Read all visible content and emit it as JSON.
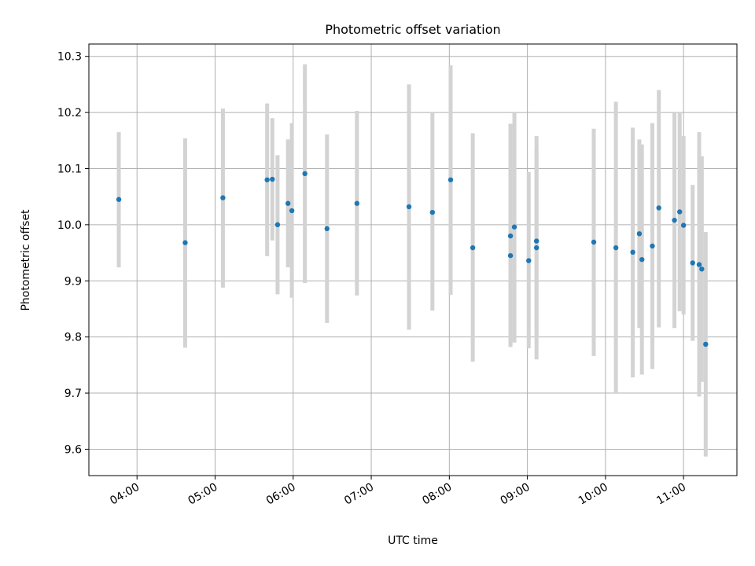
{
  "chart_data": {
    "type": "scatter",
    "title": "Photometric offset variation",
    "xlabel": "UTC time",
    "ylabel": "Photometric offset",
    "x_unit": "UTC time (HH:MM)",
    "xlim": [
      "03:23",
      "11:41"
    ],
    "ylim": [
      9.553,
      10.322
    ],
    "xticks": [
      "04:00",
      "05:00",
      "06:00",
      "07:00",
      "08:00",
      "09:00",
      "10:00",
      "11:00"
    ],
    "yticks": [
      9.6,
      9.7,
      9.8,
      9.9,
      10.0,
      10.1,
      10.2,
      10.3
    ],
    "grid": true,
    "point_color": "#1f77b4",
    "errorbar_color": "#d3d3d3",
    "series": [
      {
        "points": [
          {
            "x": "03:46",
            "y": 10.045,
            "ylow": 9.924,
            "yhigh": 10.165
          },
          {
            "x": "04:37",
            "y": 9.968,
            "ylow": 9.781,
            "yhigh": 10.154
          },
          {
            "x": "05:06",
            "y": 10.048,
            "ylow": 9.888,
            "yhigh": 10.207
          },
          {
            "x": "05:40",
            "y": 10.08,
            "ylow": 9.944,
            "yhigh": 10.216
          },
          {
            "x": "05:44",
            "y": 10.081,
            "ylow": 9.972,
            "yhigh": 10.19
          },
          {
            "x": "05:48",
            "y": 10.0,
            "ylow": 9.876,
            "yhigh": 10.124
          },
          {
            "x": "05:56",
            "y": 10.038,
            "ylow": 9.924,
            "yhigh": 10.152
          },
          {
            "x": "05:59",
            "y": 10.025,
            "ylow": 9.87,
            "yhigh": 10.181
          },
          {
            "x": "06:09",
            "y": 10.091,
            "ylow": 9.896,
            "yhigh": 10.286
          },
          {
            "x": "06:26",
            "y": 9.993,
            "ylow": 9.825,
            "yhigh": 10.161
          },
          {
            "x": "06:49",
            "y": 10.038,
            "ylow": 9.874,
            "yhigh": 10.203
          },
          {
            "x": "07:29",
            "y": 10.032,
            "ylow": 9.813,
            "yhigh": 10.25
          },
          {
            "x": "07:47",
            "y": 10.022,
            "ylow": 9.847,
            "yhigh": 10.2
          },
          {
            "x": "08:01",
            "y": 10.08,
            "ylow": 9.875,
            "yhigh": 10.284
          },
          {
            "x": "08:18",
            "y": 9.959,
            "ylow": 9.756,
            "yhigh": 10.163
          },
          {
            "x": "08:47",
            "y": 9.945,
            "ylow": 9.782,
            "yhigh": 10.178
          },
          {
            "x": "08:47",
            "y": 9.98,
            "ylow": 9.786,
            "yhigh": 10.18
          },
          {
            "x": "08:50",
            "y": 9.996,
            "ylow": 9.79,
            "yhigh": 10.2
          },
          {
            "x": "09:01",
            "y": 9.936,
            "ylow": 9.78,
            "yhigh": 10.094
          },
          {
            "x": "09:07",
            "y": 9.971,
            "ylow": 9.805,
            "yhigh": 10.135
          },
          {
            "x": "09:07",
            "y": 9.959,
            "ylow": 9.76,
            "yhigh": 10.158
          },
          {
            "x": "09:51",
            "y": 9.969,
            "ylow": 9.766,
            "yhigh": 10.171
          },
          {
            "x": "10:08",
            "y": 9.959,
            "ylow": 9.7,
            "yhigh": 10.219
          },
          {
            "x": "10:21",
            "y": 9.951,
            "ylow": 9.728,
            "yhigh": 10.173
          },
          {
            "x": "10:26",
            "y": 9.984,
            "ylow": 9.816,
            "yhigh": 10.152
          },
          {
            "x": "10:28",
            "y": 9.938,
            "ylow": 9.733,
            "yhigh": 10.143
          },
          {
            "x": "10:36",
            "y": 9.962,
            "ylow": 9.743,
            "yhigh": 10.181
          },
          {
            "x": "10:41",
            "y": 10.03,
            "ylow": 9.817,
            "yhigh": 10.24
          },
          {
            "x": "10:53",
            "y": 10.008,
            "ylow": 9.816,
            "yhigh": 10.2
          },
          {
            "x": "10:57",
            "y": 10.023,
            "ylow": 9.846,
            "yhigh": 10.2
          },
          {
            "x": "11:00",
            "y": 9.999,
            "ylow": 9.84,
            "yhigh": 10.158
          },
          {
            "x": "11:07",
            "y": 9.932,
            "ylow": 9.793,
            "yhigh": 10.071
          },
          {
            "x": "11:12",
            "y": 9.929,
            "ylow": 9.694,
            "yhigh": 10.165
          },
          {
            "x": "11:14",
            "y": 9.921,
            "ylow": 9.72,
            "yhigh": 10.122
          },
          {
            "x": "11:17",
            "y": 9.787,
            "ylow": 9.587,
            "yhigh": 9.987
          }
        ]
      }
    ]
  }
}
